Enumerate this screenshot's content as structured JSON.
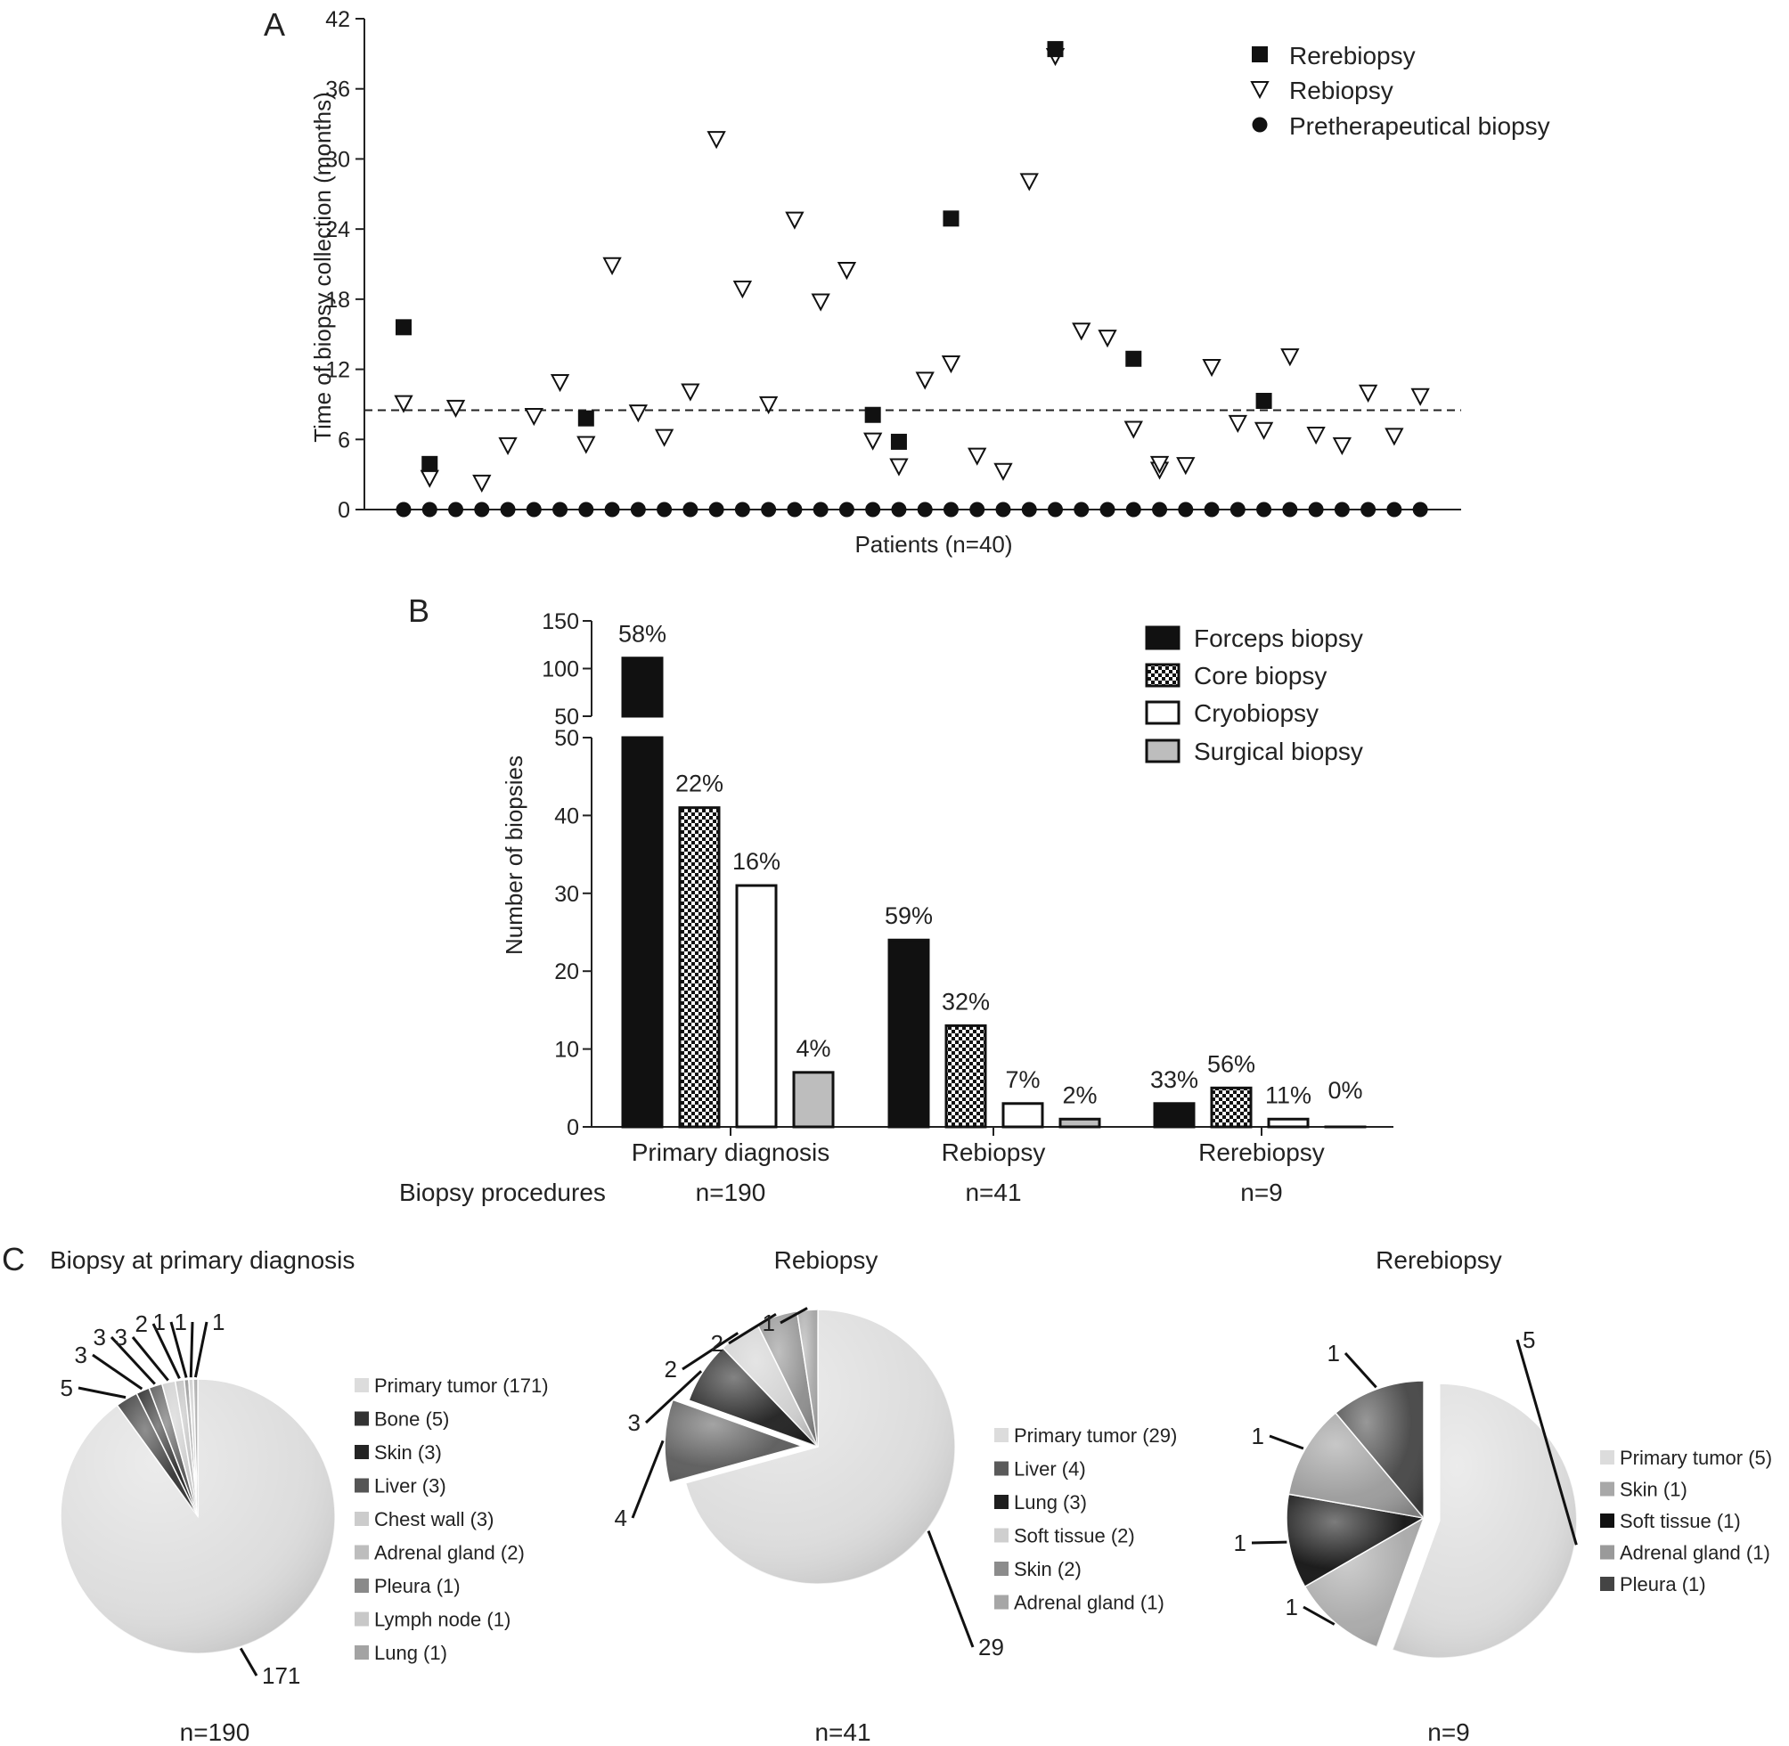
{
  "panels": {
    "a": "A",
    "b": "B",
    "c": "C"
  },
  "chart_data": [
    {
      "type": "scatter",
      "xlabel": "Patients (n=40)",
      "ylabel": "Time of biopsy collection (months)",
      "ylim": [
        0,
        42
      ],
      "yticks": [
        0,
        6,
        12,
        18,
        24,
        30,
        36,
        42
      ],
      "x": [
        1,
        2,
        3,
        4,
        5,
        6,
        7,
        8,
        9,
        10,
        11,
        12,
        13,
        14,
        15,
        16,
        17,
        18,
        19,
        20,
        21,
        22,
        23,
        24,
        25,
        26,
        27,
        28,
        29,
        30,
        31,
        32,
        33,
        34,
        35,
        36,
        37,
        38,
        39,
        40
      ],
      "reference_line": 8.5,
      "legend_position": "top-right",
      "series": [
        {
          "name": "Rerebiopsy",
          "marker": "filled-square",
          "points": [
            [
              1,
              15.6
            ],
            [
              2,
              3.9
            ],
            [
              8,
              7.8
            ],
            [
              19,
              8.1
            ],
            [
              20,
              5.8
            ],
            [
              22,
              24.9
            ],
            [
              26,
              39.4
            ],
            [
              29,
              12.9
            ],
            [
              34,
              9.3
            ]
          ]
        },
        {
          "name": "Rebiopsy",
          "marker": "open-triangle-down",
          "points": [
            [
              1,
              9.1
            ],
            [
              2,
              2.7
            ],
            [
              3,
              8.7
            ],
            [
              4,
              2.3
            ],
            [
              5,
              5.5
            ],
            [
              6,
              8.0
            ],
            [
              7,
              10.9
            ],
            [
              8,
              5.6
            ],
            [
              9,
              20.9
            ],
            [
              10,
              8.3
            ],
            [
              11,
              6.2
            ],
            [
              12,
              10.1
            ],
            [
              13,
              31.7
            ],
            [
              14,
              18.9
            ],
            [
              15,
              9.0
            ],
            [
              16,
              24.8
            ],
            [
              17,
              17.8
            ],
            [
              18,
              20.5
            ],
            [
              19,
              5.9
            ],
            [
              20,
              3.7
            ],
            [
              21,
              11.1
            ],
            [
              22,
              12.5
            ],
            [
              23,
              4.6
            ],
            [
              24,
              3.3
            ],
            [
              25,
              28.1
            ],
            [
              26,
              38.8
            ],
            [
              27,
              15.3
            ],
            [
              28,
              14.7
            ],
            [
              29,
              6.9
            ],
            [
              30,
              3.4
            ],
            [
              30,
              3.9
            ],
            [
              31,
              3.8
            ],
            [
              32,
              12.2
            ],
            [
              33,
              7.4
            ],
            [
              34,
              6.8
            ],
            [
              35,
              13.1
            ],
            [
              36,
              6.4
            ],
            [
              37,
              5.5
            ],
            [
              38,
              10.0
            ],
            [
              39,
              6.3
            ],
            [
              40,
              9.7
            ]
          ]
        },
        {
          "name": "Pretherapeutical biopsy",
          "marker": "filled-circle",
          "points": [
            [
              1,
              0
            ],
            [
              2,
              0
            ],
            [
              3,
              0
            ],
            [
              4,
              0
            ],
            [
              5,
              0
            ],
            [
              6,
              0
            ],
            [
              7,
              0
            ],
            [
              8,
              0
            ],
            [
              9,
              0
            ],
            [
              10,
              0
            ],
            [
              11,
              0
            ],
            [
              12,
              0
            ],
            [
              13,
              0
            ],
            [
              14,
              0
            ],
            [
              15,
              0
            ],
            [
              16,
              0
            ],
            [
              17,
              0
            ],
            [
              18,
              0
            ],
            [
              19,
              0
            ],
            [
              20,
              0
            ],
            [
              21,
              0
            ],
            [
              22,
              0
            ],
            [
              23,
              0
            ],
            [
              24,
              0
            ],
            [
              25,
              0
            ],
            [
              26,
              0
            ],
            [
              27,
              0
            ],
            [
              28,
              0
            ],
            [
              29,
              0
            ],
            [
              30,
              0
            ],
            [
              31,
              0
            ],
            [
              32,
              0
            ],
            [
              33,
              0
            ],
            [
              34,
              0
            ],
            [
              35,
              0
            ],
            [
              36,
              0
            ],
            [
              37,
              0
            ],
            [
              38,
              0
            ],
            [
              39,
              0
            ],
            [
              40,
              0
            ]
          ]
        }
      ]
    },
    {
      "type": "bar",
      "ylabel": "Number of biopsies",
      "broken_axis": {
        "lower_ylim": [
          0,
          50
        ],
        "lower_ticks": [
          0,
          10,
          20,
          30,
          40,
          50
        ],
        "upper_ylim": [
          50,
          150
        ],
        "upper_ticks": [
          50,
          100,
          150
        ]
      },
      "row_label": "Biopsy procedures",
      "legend_position": "top-right",
      "categories": [
        {
          "label": "Primary diagnosis",
          "n": "n=190"
        },
        {
          "label": "Rebiopsy",
          "n": "n=41"
        },
        {
          "label": "Rerebiopsy",
          "n": "n=9"
        }
      ],
      "series": [
        {
          "name": "Forceps biopsy",
          "fill": "black",
          "values": [
            111,
            24,
            3
          ],
          "labels": [
            "58%",
            "59%",
            "33%"
          ]
        },
        {
          "name": "Core biopsy",
          "fill": "checker",
          "values": [
            41,
            13,
            5
          ],
          "labels": [
            "22%",
            "32%",
            "56%"
          ]
        },
        {
          "name": "Cryobiopsy",
          "fill": "white",
          "values": [
            31,
            3,
            1
          ],
          "labels": [
            "16%",
            "7%",
            "11%"
          ]
        },
        {
          "name": "Surgical biopsy",
          "fill": "gray",
          "values": [
            7,
            1,
            0
          ],
          "labels": [
            "4%",
            "2%",
            "0%"
          ]
        }
      ]
    },
    {
      "type": "pie",
      "title": "Biopsy at primary diagnosis",
      "n": "n=190",
      "slices": [
        {
          "label": "Primary tumor (171)",
          "value": 171,
          "value_label": "171",
          "color": "#dcdcdc"
        },
        {
          "label": "Bone (5)",
          "value": 5,
          "value_label": "5",
          "color": "#333333"
        },
        {
          "label": "Skin (3)",
          "value": 3,
          "value_label": "3",
          "color": "#242424"
        },
        {
          "label": "Liver (3)",
          "value": 3,
          "value_label": "3",
          "color": "#555555"
        },
        {
          "label": "Chest wall (3)",
          "value": 3,
          "value_label": "3",
          "color": "#cccccc"
        },
        {
          "label": "Adrenal gland (2)",
          "value": 2,
          "value_label": "2",
          "color": "#bdbdbd"
        },
        {
          "label": "Pleura (1)",
          "value": 1,
          "value_label": "1",
          "color": "#8a8a8a"
        },
        {
          "label": "Lymph node (1)",
          "value": 1,
          "value_label": "1",
          "color": "#c8c8c8"
        },
        {
          "label": "Lung (1)",
          "value": 1,
          "value_label": "1",
          "color": "#a3a3a3"
        }
      ]
    },
    {
      "type": "pie",
      "title": "Rebiopsy",
      "n": "n=41",
      "slices": [
        {
          "label": "Primary tumor (29)",
          "value": 29,
          "value_label": "29",
          "color": "#dcdcdc"
        },
        {
          "label": "Liver (4)",
          "value": 4,
          "value_label": "4",
          "color": "#5a5a5a"
        },
        {
          "label": "Lung (3)",
          "value": 3,
          "value_label": "3",
          "color": "#1e1e1e"
        },
        {
          "label": "Soft tissue (2)",
          "value": 2,
          "value_label": "2",
          "color": "#cfcfcf"
        },
        {
          "label": "Skin (2)",
          "value": 2,
          "value_label": "2",
          "color": "#8c8c8c"
        },
        {
          "label": "Adrenal gland (1)",
          "value": 1,
          "value_label": "1",
          "color": "#a6a6a6"
        }
      ]
    },
    {
      "type": "pie",
      "title": "Rerebiopsy",
      "n": "n=9",
      "slices": [
        {
          "label": "Primary tumor (5)",
          "value": 5,
          "value_label": "5",
          "color": "#dcdcdc"
        },
        {
          "label": "Skin (1)",
          "value": 1,
          "value_label": "1",
          "color": "#a8a8a8"
        },
        {
          "label": "Soft tissue (1)",
          "value": 1,
          "value_label": "1",
          "color": "#111111"
        },
        {
          "label": "Adrenal gland (1)",
          "value": 1,
          "value_label": "1",
          "color": "#9a9a9a"
        },
        {
          "label": "Pleura (1)",
          "value": 1,
          "value_label": "1",
          "color": "#444444"
        }
      ]
    }
  ]
}
